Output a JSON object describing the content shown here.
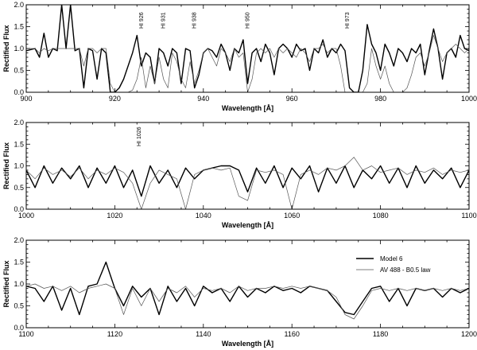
{
  "chart_data": [
    {
      "type": "line",
      "xlabel": "Wavelength [Å]",
      "ylabel": "Rectified Flux",
      "xlim": [
        900,
        1000
      ],
      "ylim": [
        0,
        2.0
      ],
      "xticks": [
        "900",
        "920",
        "940",
        "960",
        "980",
        "1000"
      ],
      "yticks": [
        "0.0",
        "0.5",
        "1.0",
        "1.5",
        "2.0"
      ],
      "annotations": [
        {
          "label": "HI 926",
          "x": 926
        },
        {
          "label": "HI 931",
          "x": 931
        },
        {
          "label": "HI 938",
          "x": 938
        },
        {
          "label": "HI 950",
          "x": 950
        },
        {
          "label": "HI 973",
          "x": 972.5
        }
      ],
      "series": [
        {
          "name": "Model 6",
          "x": [
            900,
            902,
            903,
            904,
            905,
            906,
            907,
            908,
            909,
            910,
            911,
            912,
            913,
            914,
            915,
            916,
            917,
            918,
            919,
            920,
            921,
            922,
            923,
            924,
            925,
            926,
            927,
            928,
            929,
            930,
            931,
            932,
            933,
            934,
            935,
            936,
            937,
            938,
            939,
            940,
            941,
            942,
            943,
            944,
            945,
            946,
            947,
            948,
            949,
            950,
            951,
            952,
            953,
            954,
            955,
            956,
            957,
            958,
            959,
            960,
            961,
            962,
            963,
            964,
            965,
            966,
            967,
            968,
            969,
            970,
            971,
            972,
            973,
            974,
            975,
            976,
            977,
            978,
            979,
            980,
            981,
            982,
            983,
            984,
            985,
            986,
            987,
            988,
            989,
            990,
            991,
            992,
            993,
            994,
            995,
            996,
            997,
            998,
            999,
            1000
          ],
          "y": [
            0.95,
            1.0,
            0.8,
            1.35,
            0.8,
            1.0,
            0.95,
            2.0,
            1.0,
            2.0,
            0.95,
            1.0,
            0.1,
            1.0,
            0.95,
            0.3,
            1.0,
            0.9,
            0.0,
            0.0,
            0.1,
            0.3,
            0.6,
            0.9,
            1.3,
            0.6,
            0.9,
            0.8,
            0.2,
            1.0,
            0.9,
            0.6,
            1.0,
            0.9,
            0.2,
            1.0,
            0.95,
            0.1,
            0.4,
            0.9,
            1.0,
            0.95,
            0.8,
            1.1,
            0.9,
            0.5,
            1.0,
            0.9,
            1.2,
            0.2,
            0.9,
            1.0,
            0.7,
            1.1,
            0.9,
            0.4,
            1.0,
            1.1,
            1.0,
            0.8,
            1.1,
            0.95,
            1.0,
            0.5,
            1.0,
            0.9,
            1.2,
            0.8,
            1.0,
            0.9,
            1.1,
            0.95,
            0.1,
            0.0,
            0.0,
            0.5,
            1.55,
            1.1,
            0.9,
            0.5,
            1.1,
            0.9,
            0.6,
            1.0,
            0.9,
            0.7,
            1.0,
            0.9,
            1.1,
            0.4,
            0.95,
            1.45,
            1.0,
            0.3,
            0.9,
            1.0,
            0.8,
            1.3,
            1.0,
            0.95
          ]
        },
        {
          "name": "AV 488 - B0.5 law",
          "x": [
            900,
            902,
            903,
            904,
            905,
            906,
            907,
            908,
            909,
            910,
            911,
            912,
            913,
            914,
            915,
            916,
            917,
            918,
            919,
            920,
            921,
            922,
            923,
            924,
            925,
            926,
            927,
            928,
            929,
            930,
            931,
            932,
            933,
            934,
            935,
            936,
            937,
            938,
            939,
            940,
            941,
            942,
            943,
            944,
            945,
            946,
            947,
            948,
            949,
            950,
            951,
            952,
            953,
            954,
            955,
            956,
            957,
            958,
            959,
            960,
            961,
            962,
            963,
            964,
            965,
            966,
            967,
            968,
            969,
            970,
            971,
            972,
            973,
            974,
            975,
            976,
            977,
            978,
            979,
            980,
            981,
            982,
            983,
            984,
            985,
            986,
            987,
            988,
            989,
            990,
            991,
            992,
            993,
            994,
            995,
            996,
            997,
            998,
            999,
            1000
          ],
          "y": [
            1.0,
            1.0,
            0.9,
            1.0,
            0.95,
            1.0,
            1.0,
            1.0,
            1.0,
            1.0,
            1.0,
            1.0,
            0.6,
            1.0,
            1.0,
            0.9,
            1.0,
            1.0,
            0.2,
            0.0,
            0.0,
            0.0,
            0.0,
            0.05,
            0.3,
            0.8,
            0.1,
            0.6,
            0.2,
            0.8,
            0.3,
            0.1,
            0.9,
            0.7,
            0.3,
            0.1,
            0.7,
            0.2,
            0.5,
            0.9,
            1.0,
            0.8,
            0.6,
            1.0,
            0.9,
            0.7,
            1.0,
            0.8,
            0.9,
            0.0,
            0.3,
            0.9,
            1.0,
            0.9,
            1.0,
            0.8,
            1.0,
            0.9,
            1.0,
            0.9,
            0.8,
            1.0,
            0.9,
            0.7,
            1.0,
            1.0,
            1.1,
            0.9,
            1.0,
            1.0,
            0.6,
            0.0,
            0.0,
            0.0,
            0.0,
            0.0,
            0.2,
            1.0,
            0.6,
            0.3,
            0.6,
            0.2,
            0.0,
            0.0,
            0.0,
            0.1,
            0.4,
            0.8,
            0.9,
            0.6,
            0.9,
            1.3,
            1.0,
            0.7,
            0.9,
            1.0,
            1.1,
            1.0,
            0.9,
            1.0
          ]
        }
      ]
    },
    {
      "type": "line",
      "xlabel": "Wavelength [Å]",
      "ylabel": "Rectified Flux",
      "xlim": [
        1000,
        1100
      ],
      "ylim": [
        0,
        2.0
      ],
      "xticks": [
        "1000",
        "1020",
        "1040",
        "1060",
        "1080",
        "1100"
      ],
      "yticks": [
        "0.0",
        "0.5",
        "1.0",
        "1.5",
        "2.0"
      ],
      "annotations": [
        {
          "label": "HI 1026",
          "x": 1025.5
        }
      ],
      "series": [
        {
          "name": "Model 6",
          "x": [
            1000,
            1002,
            1004,
            1006,
            1008,
            1010,
            1012,
            1014,
            1016,
            1018,
            1020,
            1022,
            1024,
            1026,
            1028,
            1030,
            1032,
            1034,
            1036,
            1038,
            1040,
            1042,
            1044,
            1046,
            1048,
            1050,
            1052,
            1054,
            1056,
            1058,
            1060,
            1062,
            1064,
            1066,
            1068,
            1070,
            1072,
            1074,
            1076,
            1078,
            1080,
            1082,
            1084,
            1086,
            1088,
            1090,
            1092,
            1094,
            1096,
            1098,
            1100
          ],
          "y": [
            0.9,
            0.5,
            1.0,
            0.6,
            0.95,
            0.7,
            1.0,
            0.5,
            0.95,
            0.6,
            1.0,
            0.5,
            0.9,
            0.3,
            1.0,
            0.6,
            0.9,
            0.5,
            0.95,
            0.7,
            0.9,
            0.95,
            1.0,
            1.0,
            0.9,
            0.4,
            0.95,
            0.6,
            1.0,
            0.5,
            0.95,
            0.7,
            1.0,
            0.4,
            0.95,
            0.6,
            1.0,
            0.5,
            0.9,
            0.7,
            1.0,
            0.6,
            0.95,
            0.5,
            1.0,
            0.6,
            0.9,
            0.7,
            0.95,
            0.5,
            0.9
          ]
        },
        {
          "name": "AV 488 - B0.5 law",
          "x": [
            1000,
            1002,
            1004,
            1006,
            1008,
            1010,
            1012,
            1014,
            1016,
            1018,
            1020,
            1022,
            1024,
            1026,
            1028,
            1030,
            1032,
            1034,
            1036,
            1038,
            1040,
            1042,
            1044,
            1046,
            1048,
            1050,
            1052,
            1054,
            1056,
            1058,
            1060,
            1062,
            1064,
            1066,
            1068,
            1070,
            1072,
            1074,
            1076,
            1078,
            1080,
            1082,
            1084,
            1086,
            1088,
            1090,
            1092,
            1094,
            1096,
            1098,
            1100
          ],
          "y": [
            0.9,
            0.7,
            0.95,
            0.8,
            0.9,
            0.75,
            0.95,
            0.7,
            0.9,
            0.8,
            0.95,
            0.85,
            0.6,
            0.0,
            0.6,
            0.9,
            0.8,
            0.7,
            0.0,
            0.8,
            0.9,
            0.95,
            0.9,
            0.95,
            0.3,
            0.2,
            0.9,
            0.85,
            0.9,
            0.8,
            0.0,
            0.8,
            0.9,
            0.8,
            0.95,
            0.9,
            1.0,
            1.2,
            0.9,
            1.0,
            0.85,
            0.9,
            0.95,
            0.8,
            0.9,
            0.85,
            0.95,
            0.8,
            0.9,
            0.85,
            0.9
          ]
        }
      ]
    },
    {
      "type": "line",
      "xlabel": "Wavelength [Å]",
      "ylabel": "Rectified Flux",
      "xlim": [
        1100,
        1200
      ],
      "ylim": [
        0,
        2.0
      ],
      "xticks": [
        "1100",
        "1120",
        "1140",
        "1160",
        "1180",
        "1200"
      ],
      "yticks": [
        "0.0",
        "0.5",
        "1.0",
        "1.5",
        "2.0"
      ],
      "legend": {
        "placement": "top-right",
        "entries": [
          "Model 6",
          "AV 488 - B0.5 law"
        ]
      },
      "series": [
        {
          "name": "Model 6",
          "x": [
            1100,
            1102,
            1104,
            1106,
            1108,
            1110,
            1112,
            1114,
            1116,
            1117,
            1118,
            1119,
            1120,
            1122,
            1124,
            1126,
            1128,
            1130,
            1132,
            1134,
            1136,
            1138,
            1140,
            1142,
            1144,
            1146,
            1148,
            1150,
            1152,
            1154,
            1156,
            1158,
            1160,
            1162,
            1164,
            1166,
            1168,
            1170,
            1172,
            1174,
            1176,
            1178,
            1180,
            1182,
            1184,
            1186,
            1188,
            1190,
            1192,
            1194,
            1196,
            1198,
            1200
          ],
          "y": [
            0.95,
            0.9,
            0.6,
            0.95,
            0.4,
            0.9,
            0.3,
            0.95,
            1.0,
            1.25,
            1.5,
            1.2,
            0.9,
            0.5,
            0.95,
            0.7,
            0.9,
            0.3,
            0.95,
            0.6,
            0.9,
            0.5,
            0.95,
            0.8,
            0.9,
            0.6,
            0.95,
            0.7,
            0.9,
            0.8,
            0.95,
            0.85,
            0.9,
            0.8,
            0.95,
            0.9,
            0.85,
            0.6,
            0.35,
            0.3,
            0.6,
            0.9,
            0.95,
            0.6,
            0.9,
            0.5,
            0.9,
            0.85,
            0.9,
            0.7,
            0.9,
            0.8,
            0.9
          ]
        },
        {
          "name": "AV 488 - B0.5 law",
          "x": [
            1100,
            1102,
            1104,
            1106,
            1108,
            1110,
            1112,
            1114,
            1116,
            1118,
            1120,
            1122,
            1124,
            1126,
            1128,
            1130,
            1132,
            1134,
            1136,
            1138,
            1140,
            1142,
            1144,
            1146,
            1148,
            1150,
            1152,
            1154,
            1156,
            1158,
            1160,
            1162,
            1164,
            1166,
            1168,
            1170,
            1172,
            1174,
            1176,
            1178,
            1180,
            1182,
            1184,
            1186,
            1188,
            1190,
            1192,
            1194,
            1196,
            1198,
            1200
          ],
          "y": [
            0.95,
            1.0,
            0.9,
            0.95,
            0.85,
            0.95,
            0.8,
            0.9,
            0.95,
            1.0,
            0.9,
            0.3,
            0.9,
            0.5,
            0.9,
            0.6,
            0.9,
            0.8,
            0.95,
            0.7,
            0.9,
            0.85,
            0.9,
            0.8,
            0.95,
            0.85,
            0.9,
            0.9,
            0.95,
            0.9,
            0.95,
            0.9,
            0.95,
            0.9,
            0.85,
            0.7,
            0.3,
            0.2,
            0.5,
            0.85,
            0.9,
            0.85,
            0.9,
            0.85,
            0.9,
            0.85,
            0.9,
            0.85,
            0.9,
            0.85,
            0.9
          ]
        }
      ]
    }
  ]
}
